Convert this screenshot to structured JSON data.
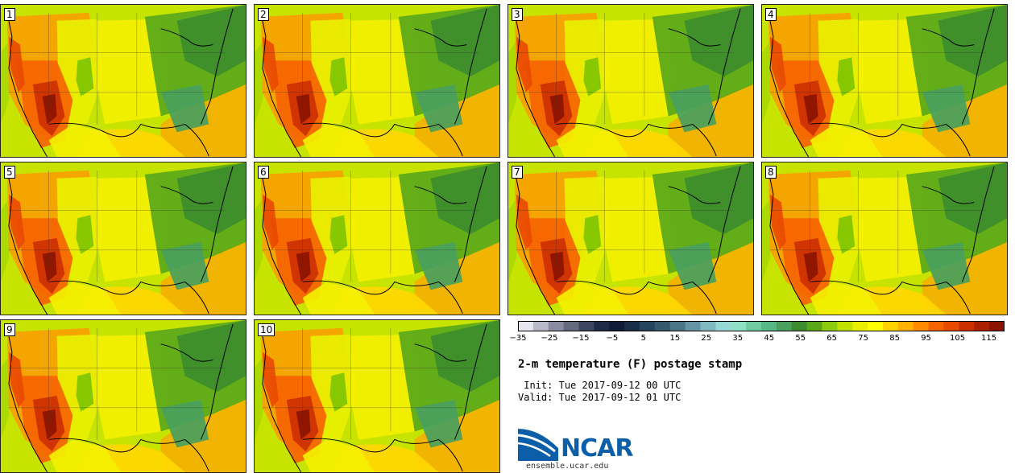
{
  "title": "2-m temperature (F) postage stamp",
  "init_label": " Init:",
  "init_time": "Tue 2017-09-12 00 UTC",
  "valid_label": "Valid:",
  "valid_time": "Tue 2017-09-12 01 UTC",
  "logo_text": "NCAR",
  "site": "ensemble.ucar.edu",
  "members": [
    "1",
    "2",
    "3",
    "4",
    "5",
    "6",
    "7",
    "8",
    "9",
    "10"
  ],
  "colorbar": {
    "min": -35,
    "max": 120,
    "step": 5,
    "tick_labels": [
      "−35",
      "−25",
      "−15",
      "−5",
      "5",
      "15",
      "25",
      "35",
      "45",
      "55",
      "65",
      "75",
      "85",
      "95",
      "105",
      "115"
    ],
    "tick_values": [
      -35,
      -25,
      -15,
      -5,
      5,
      15,
      25,
      35,
      45,
      55,
      65,
      75,
      85,
      95,
      105,
      115
    ],
    "colors": [
      "#e6e6ee",
      "#b8b8c8",
      "#8a8aa0",
      "#666a80",
      "#3c4660",
      "#1e2a48",
      "#0e1c3a",
      "#1a2e4a",
      "#26445e",
      "#34586e",
      "#4c7688",
      "#6696a6",
      "#80b8c0",
      "#98d8d4",
      "#90e0c8",
      "#6ecca0",
      "#56b886",
      "#4aa05e",
      "#3c8c2e",
      "#5aa81a",
      "#8ccc0c",
      "#c0e000",
      "#e8f000",
      "#ffff00",
      "#ffd200",
      "#ffb000",
      "#ff8a00",
      "#f56400",
      "#e84a00",
      "#cc3000",
      "#aa2000",
      "#8a1400"
    ]
  }
}
